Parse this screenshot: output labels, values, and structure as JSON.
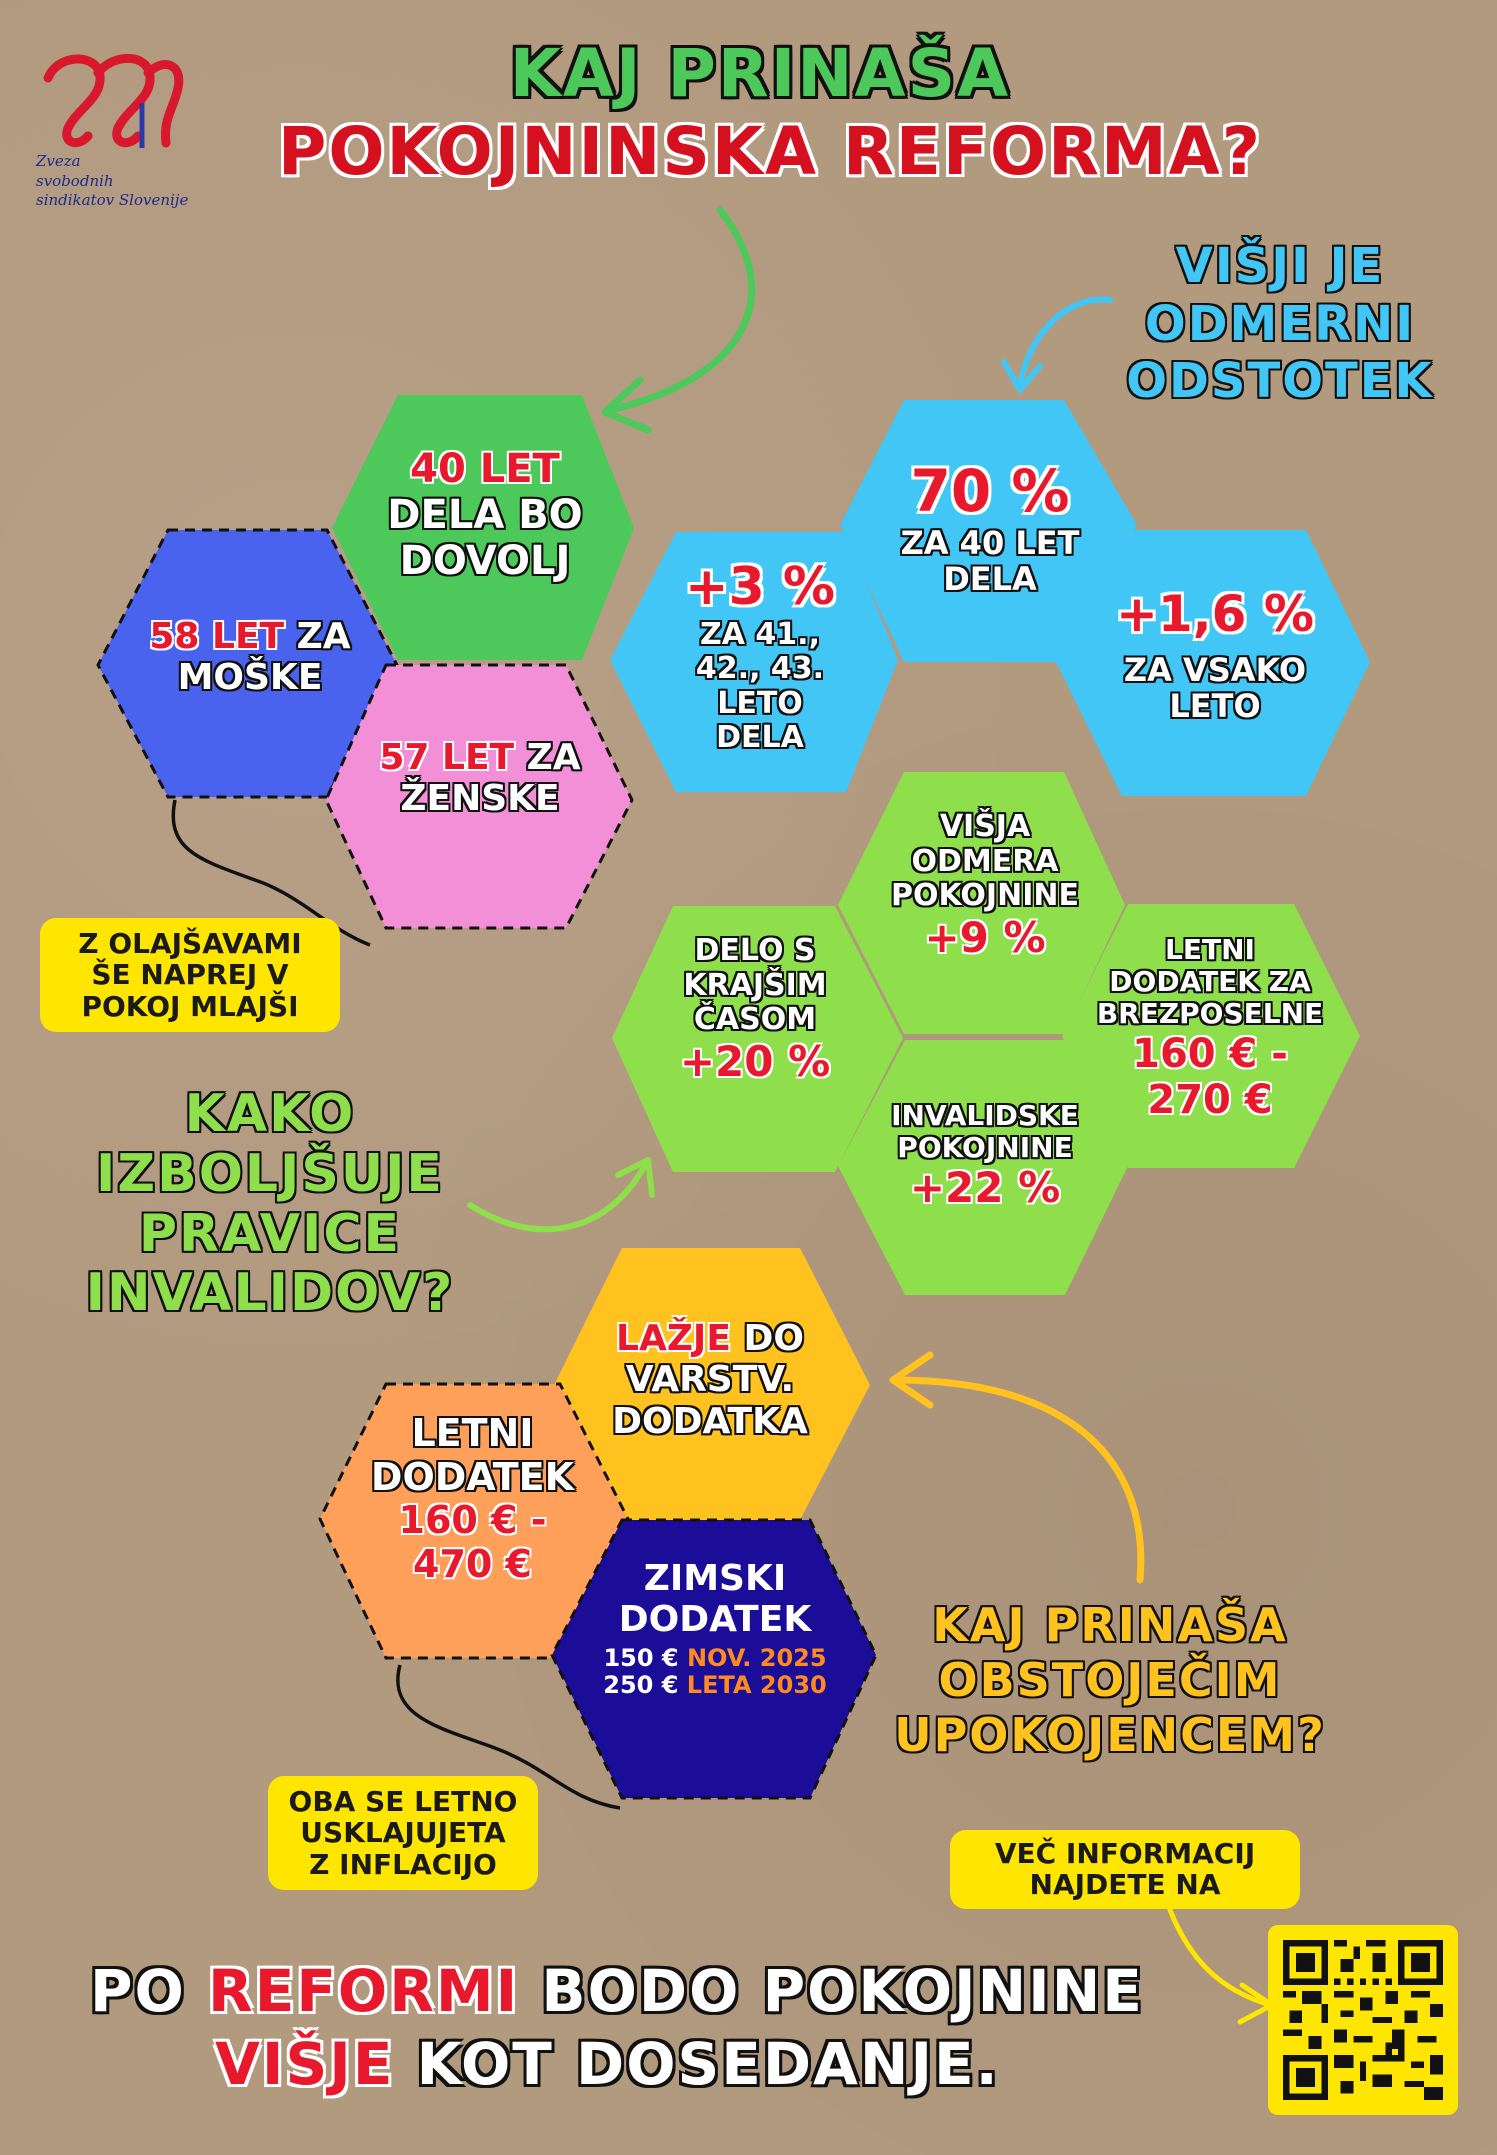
{
  "logo": {
    "lines": [
      "Zveza",
      "svobodnih",
      "sindikatov Slovenije"
    ]
  },
  "title": {
    "line1": "KAJ PRINAŠA",
    "line2": "POKOJNINSKA REFORMA?"
  },
  "odmerni": {
    "heading": [
      "VIŠJI JE",
      "ODMERNI",
      "ODSTOTEK"
    ],
    "hex_main": {
      "value": "70 %",
      "lines": [
        "ZA 40 LET",
        "DELA"
      ]
    },
    "hex_left": {
      "value": "+3 %",
      "lines": [
        "ZA 41.,",
        "42., 43.",
        "LETO",
        "DELA"
      ]
    },
    "hex_right": {
      "value": "+1,6 %",
      "lines": [
        "ZA VSAKO",
        "LETO"
      ]
    }
  },
  "age": {
    "green": {
      "value": "40 LET",
      "lines": [
        "DELA BO",
        "DOVOLJ"
      ]
    },
    "blue": {
      "value": "58 LET",
      "suffix": "ZA",
      "line2": "MOŠKE"
    },
    "pink": {
      "value": "57 LET",
      "suffix": "ZA",
      "line2": "ŽENSKE"
    },
    "note": [
      "Z OLAJŠAVAMI",
      "ŠE NAPREJ V",
      "POKOJ MLAJŠI"
    ]
  },
  "invalid": {
    "heading": [
      "KAKO",
      "IZBOLJŠUJE",
      "PRAVICE",
      "INVALIDOV?"
    ],
    "hex_top": {
      "lines": [
        "VIŠJA",
        "ODMERA",
        "POKOJNINE"
      ],
      "value": "+9 %"
    },
    "hex_left": {
      "lines": [
        "DELO S",
        "KRAJŠIM",
        "ČASOM"
      ],
      "value": "+20 %"
    },
    "hex_right": {
      "lines": [
        "LETNI",
        "DODATEK ZA",
        "BREZPOSELNE"
      ],
      "value_lines": [
        "160 € -",
        "270 €"
      ]
    },
    "hex_bottom": {
      "lines": [
        "INVALIDSKE",
        "POKOJNINE"
      ],
      "value": "+22 %"
    }
  },
  "existing": {
    "heading": [
      "KAJ PRINAŠA",
      "OBSTOJEČIM",
      "UPOKOJENCEM?"
    ],
    "hex_yellow": {
      "highlight": "LAŽJE",
      "rest": "DO",
      "lines": [
        "VARSTV.",
        "DODATKA"
      ]
    },
    "hex_orange": {
      "lines": [
        "LETNI",
        "DODATEK"
      ],
      "value_lines": [
        "160 € -",
        "470 €"
      ]
    },
    "hex_navy": {
      "lines": [
        "ZIMSKI",
        "DODATEK"
      ],
      "row1_amount": "150 €",
      "row1_when": "NOV. 2025",
      "row2_amount": "250 €",
      "row2_when": "LETA 2030"
    },
    "note": [
      "OBA SE LETNO",
      "USKLAJUJETA",
      "Z INFLACIJO"
    ]
  },
  "info": {
    "lines": [
      "VEČ INFORMACIJ",
      "NAJDETE NA"
    ]
  },
  "footer": {
    "w1": "PO",
    "w2": "REFORMI",
    "w3": "BODO POKOJNINE",
    "w4": "VIŠJE",
    "w5": "KOT DOSEDANJE."
  },
  "colors": {
    "green": "#4cc95a",
    "blue": "#4a63ee",
    "pink": "#f28fd6",
    "sky": "#41c6f5",
    "lime": "#8fde4b",
    "yellow": "#ffc21f",
    "orange": "#ffa05a",
    "navy": "#1c0d99",
    "red": "#e8192c",
    "note_yellow": "#ffe600"
  }
}
